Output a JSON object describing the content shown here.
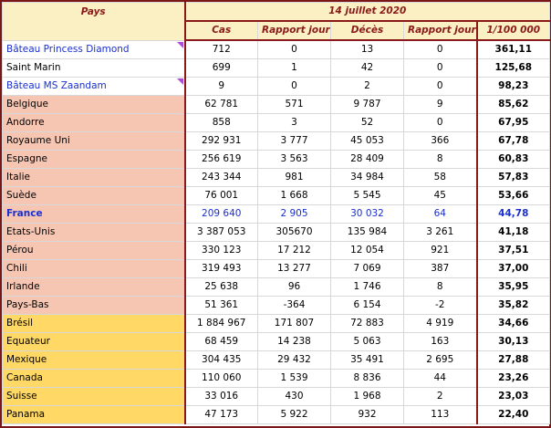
{
  "header": {
    "country_col": "Pays",
    "date": "14 juillet 2020",
    "columns": [
      "Cas",
      "Rapport jour",
      "Décès",
      "Rapport jour",
      "1/100 000"
    ]
  },
  "rows": [
    {
      "pays": "Bâteau Princess Diamond",
      "cas": "712",
      "rapport_cas": "0",
      "deces": "13",
      "rapport_deces": "0",
      "ratio": "361,11",
      "color": "white",
      "ship": true,
      "marker": true
    },
    {
      "pays": "Saint Marin",
      "cas": "699",
      "rapport_cas": "1",
      "deces": "42",
      "rapport_deces": "0",
      "ratio": "125,68",
      "color": "white"
    },
    {
      "pays": "Bâteau MS Zaandam",
      "cas": "9",
      "rapport_cas": "0",
      "deces": "2",
      "rapport_deces": "0",
      "ratio": "98,23",
      "color": "white",
      "ship": true,
      "marker": true
    },
    {
      "pays": "Belgique",
      "cas": "62 781",
      "rapport_cas": "571",
      "deces": "9 787",
      "rapport_deces": "9",
      "ratio": "85,62",
      "color": "salmon"
    },
    {
      "pays": "Andorre",
      "cas": "858",
      "rapport_cas": "3",
      "deces": "52",
      "rapport_deces": "0",
      "ratio": "67,95",
      "color": "salmon"
    },
    {
      "pays": "Royaume Uni",
      "cas": "292 931",
      "rapport_cas": "3 777",
      "deces": "45 053",
      "rapport_deces": "366",
      "ratio": "67,78",
      "color": "salmon"
    },
    {
      "pays": "Espagne",
      "cas": "256 619",
      "rapport_cas": "3 563",
      "deces": "28 409",
      "rapport_deces": "8",
      "ratio": "60,83",
      "color": "salmon"
    },
    {
      "pays": "Italie",
      "cas": "243 344",
      "rapport_cas": "981",
      "deces": "34 984",
      "rapport_deces": "58",
      "ratio": "57,83",
      "color": "salmon"
    },
    {
      "pays": "Suède",
      "cas": "76 001",
      "rapport_cas": "1 668",
      "deces": "5 545",
      "rapport_deces": "45",
      "ratio": "53,66",
      "color": "salmon"
    },
    {
      "pays": "France",
      "cas": "209 640",
      "rapport_cas": "2 905",
      "deces": "30 032",
      "rapport_deces": "64",
      "ratio": "44,78",
      "color": "salmon",
      "france": true
    },
    {
      "pays": "Etats-Unis",
      "cas": "3 387 053",
      "rapport_cas": "305670",
      "deces": "135 984",
      "rapport_deces": "3 261",
      "ratio": "41,18",
      "color": "salmon"
    },
    {
      "pays": "Pérou",
      "cas": "330 123",
      "rapport_cas": "17 212",
      "deces": "12 054",
      "rapport_deces": "921",
      "ratio": "37,51",
      "color": "salmon"
    },
    {
      "pays": "Chili",
      "cas": "319 493",
      "rapport_cas": "13 277",
      "deces": "7 069",
      "rapport_deces": "387",
      "ratio": "37,00",
      "color": "salmon"
    },
    {
      "pays": "Irlande",
      "cas": "25 638",
      "rapport_cas": "96",
      "deces": "1 746",
      "rapport_deces": "8",
      "ratio": "35,95",
      "color": "salmon"
    },
    {
      "pays": "Pays-Bas",
      "cas": "51 361",
      "rapport_cas": "-364",
      "deces": "6 154",
      "rapport_deces": "-2",
      "ratio": "35,82",
      "color": "salmon"
    },
    {
      "pays": "Brésil",
      "cas": "1 884 967",
      "rapport_cas": "171 807",
      "deces": "72 883",
      "rapport_deces": "4 919",
      "ratio": "34,66",
      "color": "yellow"
    },
    {
      "pays": "Equateur",
      "cas": "68 459",
      "rapport_cas": "14 238",
      "deces": "5 063",
      "rapport_deces": "163",
      "ratio": "30,13",
      "color": "yellow"
    },
    {
      "pays": "Mexique",
      "cas": "304 435",
      "rapport_cas": "29 432",
      "deces": "35 491",
      "rapport_deces": "2 695",
      "ratio": "27,88",
      "color": "yellow"
    },
    {
      "pays": "Canada",
      "cas": "110 060",
      "rapport_cas": "1 539",
      "deces": "8 836",
      "rapport_deces": "44",
      "ratio": "23,26",
      "color": "yellow"
    },
    {
      "pays": "Suisse",
      "cas": "33 016",
      "rapport_cas": "430",
      "deces": "1 968",
      "rapport_deces": "2",
      "ratio": "23,03",
      "color": "yellow"
    },
    {
      "pays": "Panama",
      "cas": "47 173",
      "rapport_cas": "5 922",
      "deces": "932",
      "rapport_deces": "113",
      "ratio": "22,40",
      "color": "yellow"
    }
  ],
  "colors": {
    "header_bg": "#fbf0c3",
    "header_text": "#8a1a1a",
    "border": "#8a1a1a",
    "salmon": "#f6c6b3",
    "yellow": "#ffd866",
    "link_blue": "#1a2fcf",
    "comment_marker": "#b04ad8"
  }
}
